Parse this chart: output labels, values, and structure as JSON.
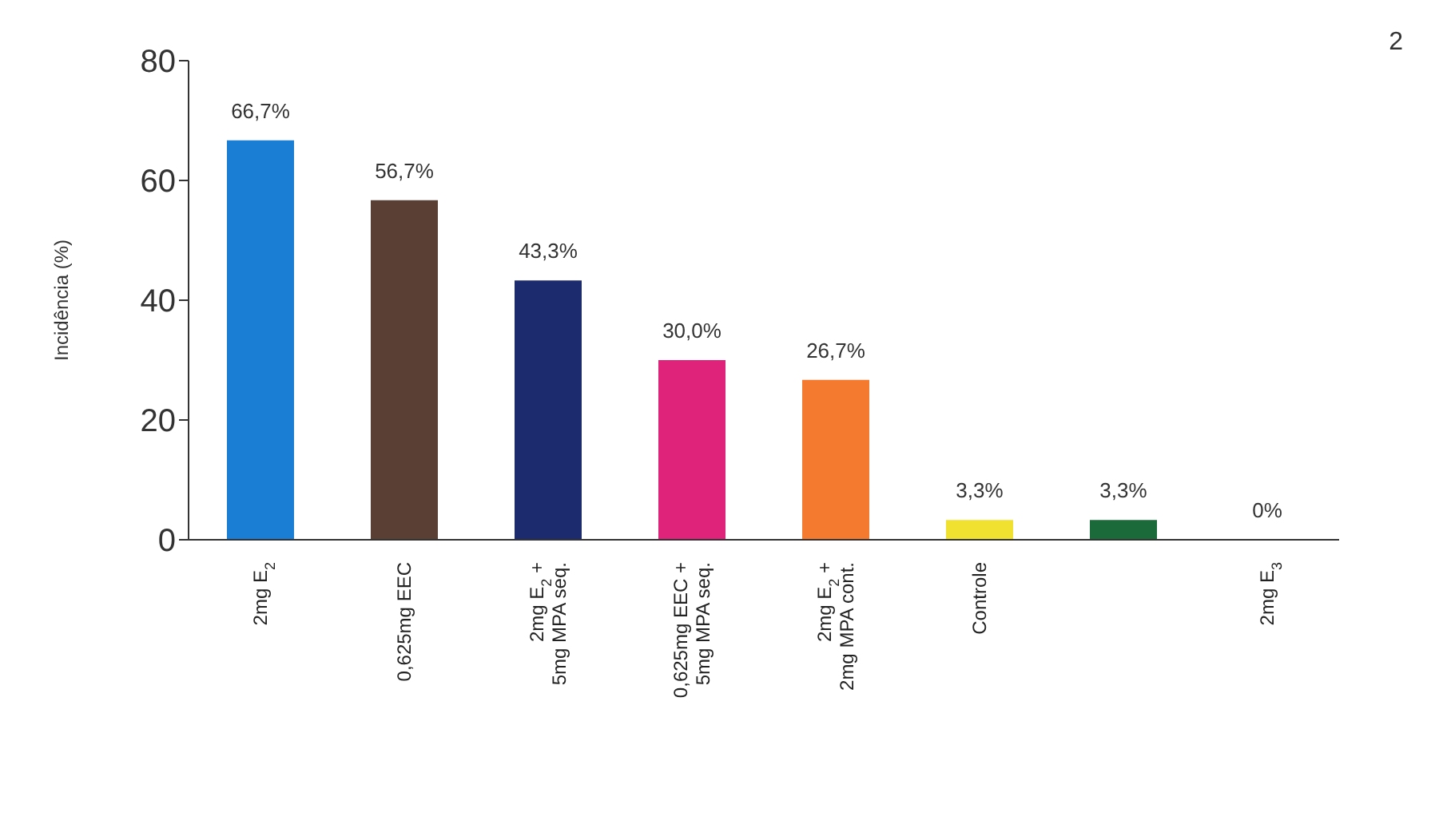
{
  "chart_data": {
    "type": "bar",
    "ylabel": "Incidência (%)",
    "categories": [
      "2mg E$_{2}$",
      "0,625mg EEC",
      "2mg E$_{2}$ +\n5mg MPA seq.",
      "0,625mg EEC +\n5mg MPA seq.",
      "2mg E$_{2}$ +\n2mg MPA cont.",
      "Controle",
      null,
      "2mg E$_{3}$"
    ],
    "values": [
      66.7,
      56.7,
      43.3,
      30.0,
      26.7,
      3.3,
      3.3,
      0
    ],
    "colors": [
      "#1a7fd4",
      "#5a4034",
      "#1c2a6e",
      "#e0237a",
      "#f47a30",
      "#f0e030",
      "#1a6a3a",
      "#999999"
    ],
    "value_labels": [
      "66,7%",
      "56,7%",
      "43,3%",
      "30,0%",
      "26,7%",
      "3,3%",
      "3,3%",
      "0%"
    ],
    "ylim": [
      0,
      80
    ],
    "yticks": [
      0,
      20,
      40,
      60,
      80
    ],
    "grid": false,
    "legend": false,
    "annotations": [
      "2"
    ]
  }
}
